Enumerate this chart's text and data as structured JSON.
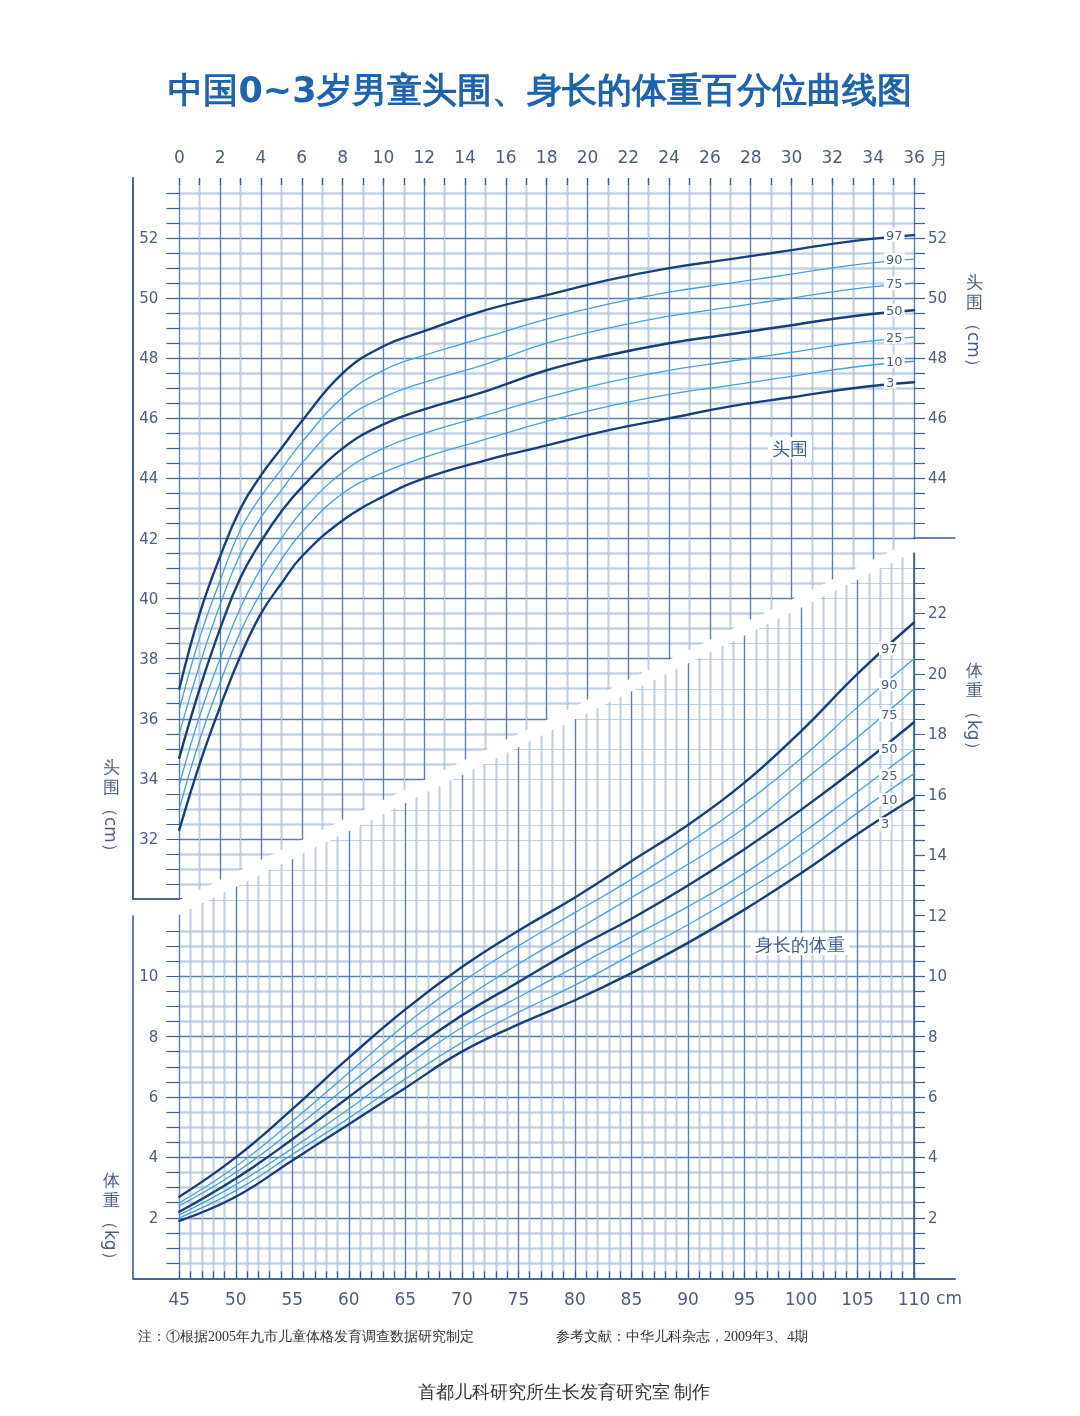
{
  "chart_data": [
    {
      "type": "line",
      "title": "中国0~3岁男童头围、身长的体重百分位曲线图",
      "xlabel": "月",
      "ylabel": "头围（cm）",
      "y2label": "头围（cm）",
      "x": [
        0,
        1,
        2,
        3,
        4,
        5,
        6,
        8,
        10,
        12,
        15,
        18,
        21,
        24,
        27,
        30,
        33,
        36
      ],
      "series": [
        {
          "name": "97",
          "color": "#183f7a",
          "values": [
            37.0,
            39.5,
            41.4,
            43.0,
            44.1,
            45.0,
            45.9,
            47.5,
            48.4,
            48.9,
            49.6,
            50.1,
            50.6,
            51.0,
            51.3,
            51.6,
            51.9,
            52.1
          ]
        },
        {
          "name": "90",
          "color": "#45a0d8",
          "values": [
            36.3,
            38.7,
            40.6,
            42.3,
            43.4,
            44.3,
            45.2,
            46.7,
            47.6,
            48.1,
            48.7,
            49.3,
            49.8,
            50.2,
            50.5,
            50.8,
            51.1,
            51.3
          ]
        },
        {
          "name": "75",
          "color": "#45a0d8",
          "values": [
            35.5,
            37.8,
            39.8,
            41.5,
            42.7,
            43.6,
            44.5,
            45.9,
            46.7,
            47.2,
            47.8,
            48.5,
            49.0,
            49.4,
            49.7,
            50.0,
            50.3,
            50.5
          ]
        },
        {
          "name": "50",
          "color": "#183f7a",
          "values": [
            34.7,
            37.0,
            39.0,
            40.7,
            41.9,
            42.9,
            43.7,
            45.0,
            45.8,
            46.3,
            46.9,
            47.6,
            48.1,
            48.5,
            48.8,
            49.1,
            49.4,
            49.6
          ]
        },
        {
          "name": "25",
          "color": "#45a0d8",
          "values": [
            33.8,
            36.1,
            38.0,
            39.7,
            41.0,
            42.0,
            42.9,
            44.2,
            45.0,
            45.5,
            46.1,
            46.7,
            47.2,
            47.6,
            47.9,
            48.2,
            48.5,
            48.7
          ]
        },
        {
          "name": "10",
          "color": "#45a0d8",
          "values": [
            33.0,
            35.3,
            37.2,
            38.9,
            40.2,
            41.3,
            42.2,
            43.5,
            44.2,
            44.7,
            45.3,
            45.9,
            46.4,
            46.8,
            47.1,
            47.4,
            47.7,
            47.9
          ]
        },
        {
          "name": "3",
          "color": "#183f7a",
          "values": [
            32.3,
            34.5,
            36.4,
            38.1,
            39.5,
            40.5,
            41.4,
            42.6,
            43.4,
            44.0,
            44.6,
            45.1,
            45.6,
            46.0,
            46.4,
            46.7,
            47.0,
            47.2
          ]
        }
      ],
      "xlim": [
        0,
        36
      ],
      "xticks": [
        0,
        {
          "value": 1,
          "label": null
        },
        2,
        {
          "value": 3,
          "label": null
        },
        4,
        {
          "value": 5,
          "label": null
        },
        6,
        {
          "value": 7,
          "label": null
        },
        8,
        {
          "value": 9,
          "label": null
        },
        10,
        {
          "value": 11,
          "label": null
        },
        12,
        {
          "value": 13,
          "label": null
        },
        14,
        {
          "value": 15,
          "label": null
        },
        16,
        {
          "value": 17,
          "label": null
        },
        18,
        {
          "value": 19,
          "label": null
        },
        20,
        {
          "value": 21,
          "label": null
        },
        22,
        {
          "value": 23,
          "label": null
        },
        24,
        {
          "value": 25,
          "label": null
        },
        26,
        {
          "value": 27,
          "label": null
        },
        28,
        {
          "value": 29,
          "label": null
        },
        30,
        {
          "value": 31,
          "label": null
        },
        32,
        {
          "value": 33,
          "label": null
        },
        34,
        {
          "value": 35,
          "label": null
        },
        36
      ],
      "ylim": [
        30,
        54
      ],
      "yticks": [
        {
          "value": 30.5,
          "label": null
        },
        {
          "value": 31,
          "label": null
        },
        {
          "value": 31.5,
          "label": null
        },
        32,
        {
          "value": 32.5,
          "label": null
        },
        {
          "value": 33,
          "label": null
        },
        {
          "value": 33.5,
          "label": null
        },
        34,
        {
          "value": 34.5,
          "label": null
        },
        {
          "value": 35,
          "label": null
        },
        {
          "value": 35.5,
          "label": null
        },
        36,
        {
          "value": 36.5,
          "label": null
        },
        {
          "value": 37,
          "label": null
        },
        {
          "value": 37.5,
          "label": null
        },
        38,
        {
          "value": 38.5,
          "label": null
        },
        {
          "value": 39,
          "label": null
        },
        {
          "value": 39.5,
          "label": null
        },
        40,
        {
          "value": 40.5,
          "label": null
        },
        {
          "value": 41,
          "label": null
        },
        {
          "value": 41.5,
          "label": null
        },
        42,
        {
          "value": 42.5,
          "label": null
        },
        {
          "value": 43,
          "label": null
        },
        {
          "value": 43.5,
          "label": null
        },
        44,
        {
          "value": 44.5,
          "label": null
        },
        {
          "value": 45,
          "label": null
        },
        {
          "value": 45.5,
          "label": null
        },
        46,
        {
          "value": 46.5,
          "label": null
        },
        {
          "value": 47,
          "label": null
        },
        {
          "value": 47.5,
          "label": null
        },
        48,
        {
          "value": 48.5,
          "label": null
        },
        {
          "value": 49,
          "label": null
        },
        {
          "value": 49.5,
          "label": null
        },
        50,
        {
          "value": 50.5,
          "label": null
        },
        {
          "value": 51,
          "label": null
        },
        {
          "value": 51.5,
          "label": null
        },
        52,
        {
          "value": 52.5,
          "label": null
        },
        {
          "value": 53,
          "label": null
        },
        {
          "value": 53.5,
          "label": null
        }
      ],
      "y2lim": [
        30,
        54
      ],
      "y2ticks": [
        {
          "value": 42.5,
          "label": null
        },
        {
          "value": 43,
          "label": null
        },
        {
          "value": 43.5,
          "label": null
        },
        44,
        {
          "value": 44.5,
          "label": null
        },
        {
          "value": 45,
          "label": null
        },
        {
          "value": 45.5,
          "label": null
        },
        46,
        {
          "value": 46.5,
          "label": null
        },
        {
          "value": 47,
          "label": null
        },
        {
          "value": 47.5,
          "label": null
        },
        48,
        {
          "value": 48.5,
          "label": null
        },
        {
          "value": 49,
          "label": null
        },
        {
          "value": 49.5,
          "label": null
        },
        50,
        {
          "value": 50.5,
          "label": null
        },
        {
          "value": 51,
          "label": null
        },
        {
          "value": 51.5,
          "label": null
        },
        52,
        {
          "value": 52.5,
          "label": null
        },
        {
          "value": 53,
          "label": null
        },
        {
          "value": 53.5,
          "label": null
        }
      ],
      "grid": true,
      "marker": "none",
      "annotations": [
        "头围"
      ]
    },
    {
      "type": "line",
      "xlabel": "cm",
      "ylabel": "体重（kg）",
      "y2label": "体重（kg）",
      "x": [
        45,
        50,
        55,
        60,
        65,
        70,
        75,
        80,
        85,
        90,
        95,
        100,
        105,
        110
      ],
      "series": [
        {
          "name": "97",
          "color": "#183f7a",
          "values": [
            2.7,
            4.0,
            5.6,
            7.3,
            8.9,
            10.3,
            11.5,
            12.6,
            13.8,
            15.0,
            16.4,
            18.1,
            20.0,
            21.7
          ]
        },
        {
          "name": "90",
          "color": "#45a0d8",
          "values": [
            2.5,
            3.7,
            5.2,
            6.8,
            8.4,
            9.8,
            11.0,
            12.1,
            13.2,
            14.4,
            15.7,
            17.2,
            18.9,
            20.5
          ]
        },
        {
          "name": "75",
          "color": "#45a0d8",
          "values": [
            2.4,
            3.5,
            4.9,
            6.4,
            7.9,
            9.2,
            10.4,
            11.5,
            12.6,
            13.7,
            14.9,
            16.4,
            17.9,
            19.5
          ]
        },
        {
          "name": "50",
          "color": "#183f7a",
          "values": [
            2.2,
            3.3,
            4.6,
            6.0,
            7.4,
            8.7,
            9.8,
            10.9,
            11.9,
            13.0,
            14.2,
            15.5,
            16.9,
            18.4
          ]
        },
        {
          "name": "25",
          "color": "#45a0d8",
          "values": [
            2.1,
            3.1,
            4.3,
            5.6,
            7.0,
            8.3,
            9.3,
            10.3,
            11.3,
            12.3,
            13.4,
            14.7,
            16.1,
            17.5
          ]
        },
        {
          "name": "10",
          "color": "#45a0d8",
          "values": [
            2.0,
            2.9,
            4.1,
            5.3,
            6.6,
            7.8,
            8.8,
            9.7,
            10.7,
            11.7,
            12.8,
            14.0,
            15.4,
            16.7
          ]
        },
        {
          "name": "3",
          "color": "#183f7a",
          "values": [
            1.9,
            2.7,
            3.9,
            5.1,
            6.3,
            7.5,
            8.4,
            9.2,
            10.1,
            11.1,
            12.2,
            13.4,
            14.7,
            15.9
          ]
        }
      ],
      "xlim": [
        45,
        110
      ],
      "xticks": [
        45,
        {
          "value": 46,
          "label": null
        },
        {
          "value": 47,
          "label": null
        },
        {
          "value": 48,
          "label": null
        },
        {
          "value": 49,
          "label": null
        },
        50,
        {
          "value": 51,
          "label": null
        },
        {
          "value": 52,
          "label": null
        },
        {
          "value": 53,
          "label": null
        },
        {
          "value": 54,
          "label": null
        },
        55,
        {
          "value": 56,
          "label": null
        },
        {
          "value": 57,
          "label": null
        },
        {
          "value": 58,
          "label": null
        },
        {
          "value": 59,
          "label": null
        },
        60,
        {
          "value": 61,
          "label": null
        },
        {
          "value": 62,
          "label": null
        },
        {
          "value": 63,
          "label": null
        },
        {
          "value": 64,
          "label": null
        },
        65,
        {
          "value": 66,
          "label": null
        },
        {
          "value": 67,
          "label": null
        },
        {
          "value": 68,
          "label": null
        },
        {
          "value": 69,
          "label": null
        },
        70,
        {
          "value": 71,
          "label": null
        },
        {
          "value": 72,
          "label": null
        },
        {
          "value": 73,
          "label": null
        },
        {
          "value": 74,
          "label": null
        },
        75,
        {
          "value": 76,
          "label": null
        },
        {
          "value": 77,
          "label": null
        },
        {
          "value": 78,
          "label": null
        },
        {
          "value": 79,
          "label": null
        },
        80,
        {
          "value": 81,
          "label": null
        },
        {
          "value": 82,
          "label": null
        },
        {
          "value": 83,
          "label": null
        },
        {
          "value": 84,
          "label": null
        },
        85,
        {
          "value": 86,
          "label": null
        },
        {
          "value": 87,
          "label": null
        },
        {
          "value": 88,
          "label": null
        },
        {
          "value": 89,
          "label": null
        },
        90,
        {
          "value": 91,
          "label": null
        },
        {
          "value": 92,
          "label": null
        },
        {
          "value": 93,
          "label": null
        },
        {
          "value": 94,
          "label": null
        },
        95,
        {
          "value": 96,
          "label": null
        },
        {
          "value": 97,
          "label": null
        },
        {
          "value": 98,
          "label": null
        },
        {
          "value": 99,
          "label": null
        },
        100,
        {
          "value": 101,
          "label": null
        },
        {
          "value": 102,
          "label": null
        },
        {
          "value": 103,
          "label": null
        },
        {
          "value": 104,
          "label": null
        },
        105,
        {
          "value": 106,
          "label": null
        },
        {
          "value": 107,
          "label": null
        },
        {
          "value": 108,
          "label": null
        },
        {
          "value": 109,
          "label": null
        },
        110
      ],
      "ylim": [
        0,
        24
      ],
      "yticks": [
        {
          "value": 0.5,
          "label": null
        },
        {
          "value": 1,
          "label": null
        },
        {
          "value": 1.5,
          "label": null
        },
        2,
        {
          "value": 2.5,
          "label": null
        },
        {
          "value": 3,
          "label": null
        },
        {
          "value": 3.5,
          "label": null
        },
        4,
        {
          "value": 4.5,
          "label": null
        },
        {
          "value": 5,
          "label": null
        },
        {
          "value": 5.5,
          "label": null
        },
        6,
        {
          "value": 6.5,
          "label": null
        },
        {
          "value": 7,
          "label": null
        },
        {
          "value": 7.5,
          "label": null
        },
        8,
        {
          "value": 8.5,
          "label": null
        },
        {
          "value": 9,
          "label": null
        },
        {
          "value": 9.5,
          "label": null
        },
        10,
        {
          "value": 10.5,
          "label": null
        },
        {
          "value": 11,
          "label": null
        },
        {
          "value": 11.5,
          "label": null
        }
      ],
      "y2lim": [
        0,
        24
      ],
      "y2ticks": [
        {
          "value": 0.5,
          "label": null
        },
        {
          "value": 1,
          "label": null
        },
        {
          "value": 1.5,
          "label": null
        },
        2,
        {
          "value": 2.5,
          "label": null
        },
        {
          "value": 3,
          "label": null
        },
        {
          "value": 3.5,
          "label": null
        },
        4,
        {
          "value": 4.5,
          "label": null
        },
        {
          "value": 5,
          "label": null
        },
        {
          "value": 5.5,
          "label": null
        },
        6,
        {
          "value": 6.5,
          "label": null
        },
        {
          "value": 7,
          "label": null
        },
        {
          "value": 7.5,
          "label": null
        },
        8,
        {
          "value": 8.5,
          "label": null
        },
        {
          "value": 9,
          "label": null
        },
        {
          "value": 9.5,
          "label": null
        },
        10,
        {
          "value": 10.5,
          "label": null
        },
        {
          "value": 11,
          "label": null
        },
        {
          "value": 11.5,
          "label": null
        },
        12,
        {
          "value": 12.5,
          "label": null
        },
        {
          "value": 13,
          "label": null
        },
        {
          "value": 13.5,
          "label": null
        },
        14,
        {
          "value": 14.5,
          "label": null
        },
        {
          "value": 15,
          "label": null
        },
        {
          "value": 15.5,
          "label": null
        },
        16,
        {
          "value": 16.5,
          "label": null
        },
        {
          "value": 17,
          "label": null
        },
        {
          "value": 17.5,
          "label": null
        },
        18,
        {
          "value": 18.5,
          "label": null
        },
        {
          "value": 19,
          "label": null
        },
        {
          "value": 19.5,
          "label": null
        },
        20,
        {
          "value": 20.5,
          "label": null
        },
        {
          "value": 21,
          "label": null
        },
        {
          "value": 21.5,
          "label": null
        },
        22,
        {
          "value": 22.5,
          "label": null
        },
        {
          "value": 23,
          "label": null
        },
        {
          "value": 23.5,
          "label": null
        }
      ],
      "grid": true,
      "marker": "none",
      "annotations": [
        "身长的体重",
        "注：①根据2005年九市儿童体格发育调查数据研究制定",
        "参考文献：中华儿科杂志，2009年3、4期",
        "首都儿科研究所生长发育研究室 制作"
      ]
    }
  ]
}
